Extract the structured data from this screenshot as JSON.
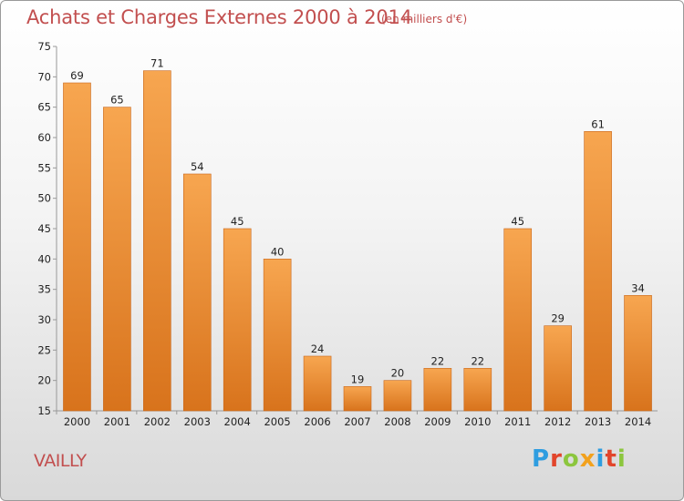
{
  "header": {
    "title": "Achats et Charges Externes 2000 à 2014",
    "unit": "(en milliers d'€)"
  },
  "footer": {
    "commune": "VAILLY",
    "brand": "Proxiti"
  },
  "colors": {
    "bar_light": "#f7a650",
    "bar_dark": "#d8731c",
    "title": "#c24f4f"
  },
  "chart_data": {
    "type": "bar",
    "title": "Achats et Charges Externes 2000 à 2014",
    "subtitle": "(en milliers d'€)",
    "categories": [
      "2000",
      "2001",
      "2002",
      "2003",
      "2004",
      "2005",
      "2006",
      "2007",
      "2008",
      "2009",
      "2010",
      "2011",
      "2012",
      "2013",
      "2014"
    ],
    "values": [
      69,
      65,
      71,
      54,
      45,
      40,
      24,
      19,
      20,
      22,
      22,
      45,
      29,
      61,
      34
    ],
    "ylim": [
      15,
      75
    ],
    "yticks": [
      15,
      20,
      25,
      30,
      35,
      40,
      45,
      50,
      55,
      60,
      65,
      70,
      75
    ],
    "grid": false,
    "legend": "none"
  }
}
